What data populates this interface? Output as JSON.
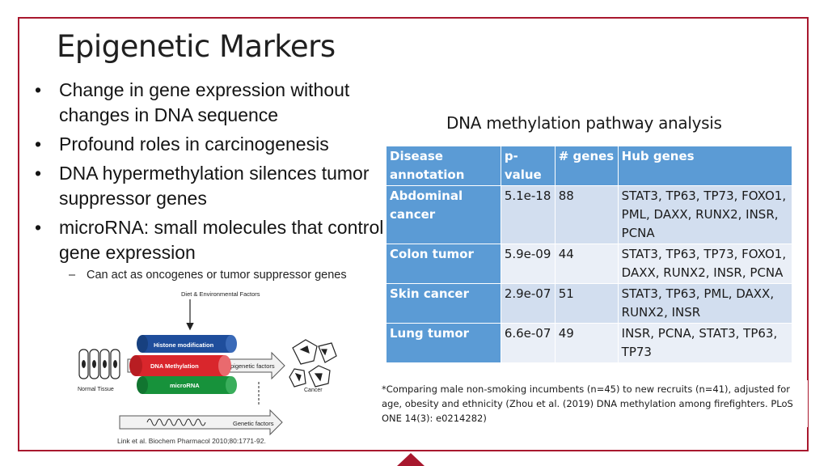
{
  "slide": {
    "title": "Epigenetic Markers",
    "bullets": [
      "Change in gene expression without changes in DNA sequence",
      "Profound roles in carcinogenesis",
      "DNA hypermethylation silences tumor suppressor genes",
      "microRNA: small molecules that control gene expression"
    ],
    "sub_bullet": "Can act as oncogenes or tumor suppressor genes",
    "bullet_glyph": "•",
    "sub_glyph": "–"
  },
  "figure": {
    "top_label": "Diet & Environmental Factors",
    "histone": "Histone modification",
    "methylation": "DNA Methylation",
    "microrna": "microRNA",
    "epigenetic": "Epigenetic factors",
    "genetic": "Genetic factors",
    "normal": "Normal Tissue",
    "cancer": "Cancer",
    "citation": "Link et al. Biochem Pharmacol 2010;80:1771-92."
  },
  "table": {
    "title": "DNA methylation pathway analysis",
    "headers": [
      "Disease annotation",
      "p-value",
      "# genes",
      "Hub genes"
    ],
    "rows": [
      {
        "disease": "Abdominal cancer",
        "p": "5.1e-18",
        "n": "88",
        "hub": "STAT3, TP63, TP73, FOXO1, PML, DAXX, RUNX2, INSR, PCNA"
      },
      {
        "disease": "Colon tumor",
        "p": "5.9e-09",
        "n": "44",
        "hub": "STAT3, TP63, TP73, FOXO1, DAXX, RUNX2, INSR, PCNA"
      },
      {
        "disease": "Skin cancer",
        "p": "2.9e-07",
        "n": "51",
        "hub": "STAT3, TP63, PML, DAXX, RUNX2, INSR"
      },
      {
        "disease": "Lung tumor",
        "p": "6.6e-07",
        "n": "49",
        "hub": "INSR, PCNA, STAT3, TP63, TP73"
      }
    ],
    "footnote": "*Comparing male non-smoking incumbents (n=45) to new recruits (n=41), adjusted for age, obesity and ethnicity (Zhou et al. (2019) DNA methylation among firefighters. PLoS ONE 14(3): e0214282)"
  },
  "colors": {
    "frame": "#a8182e",
    "table_header": "#5b9bd5",
    "row_odd": "#d2deef",
    "row_even": "#eaeff7",
    "histone": "#1f4e9c",
    "methylation": "#d9262c",
    "microrna": "#17923b"
  }
}
